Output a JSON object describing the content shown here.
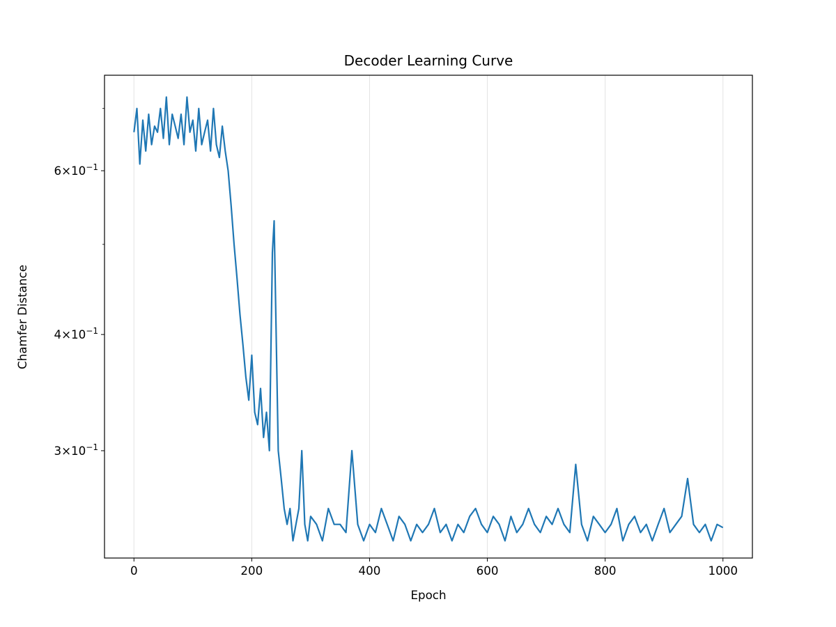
{
  "chart_data": {
    "type": "line",
    "title": "Decoder Learning Curve",
    "xlabel": "Epoch",
    "ylabel": "Chamfer Distance",
    "yscale": "log",
    "xlim": [
      -50,
      1050
    ],
    "ylim": [
      0.23,
      0.76
    ],
    "grid": "vertical (x-axis major ticks)",
    "x_ticks": [
      0,
      200,
      400,
      600,
      800,
      1000
    ],
    "x_tick_labels": [
      "0",
      "200",
      "400",
      "600",
      "800",
      "1000"
    ],
    "y_major_ticks": [
      0.3,
      0.4,
      0.6
    ],
    "y_tick_labels": [
      {
        "mantissa": "3",
        "base": "10",
        "exp": "−1"
      },
      {
        "mantissa": "4",
        "base": "10",
        "exp": "−1"
      },
      {
        "mantissa": "6",
        "base": "10",
        "exp": "−1"
      }
    ],
    "y_minor_ticks": [
      0.5,
      0.7
    ],
    "series": [
      {
        "color": "#1f77b4",
        "x": [
          0,
          5,
          10,
          15,
          20,
          25,
          30,
          35,
          40,
          45,
          50,
          55,
          60,
          65,
          70,
          75,
          80,
          85,
          90,
          95,
          100,
          105,
          110,
          115,
          120,
          125,
          130,
          135,
          140,
          145,
          150,
          155,
          160,
          165,
          170,
          175,
          180,
          185,
          190,
          195,
          200,
          205,
          210,
          215,
          220,
          225,
          230,
          235,
          238,
          240,
          245,
          250,
          255,
          260,
          265,
          270,
          275,
          280,
          285,
          290,
          295,
          300,
          310,
          320,
          330,
          340,
          350,
          360,
          370,
          380,
          390,
          400,
          410,
          420,
          430,
          440,
          450,
          460,
          470,
          480,
          490,
          500,
          510,
          520,
          530,
          540,
          550,
          560,
          570,
          580,
          590,
          600,
          610,
          620,
          630,
          640,
          650,
          660,
          670,
          680,
          690,
          700,
          710,
          720,
          730,
          740,
          750,
          760,
          770,
          780,
          790,
          800,
          810,
          820,
          830,
          840,
          850,
          860,
          870,
          880,
          890,
          900,
          910,
          920,
          930,
          940,
          950,
          960,
          970,
          980,
          990,
          1000
        ],
        "y": [
          0.66,
          0.7,
          0.61,
          0.68,
          0.63,
          0.69,
          0.64,
          0.67,
          0.66,
          0.7,
          0.65,
          0.72,
          0.64,
          0.69,
          0.67,
          0.65,
          0.69,
          0.64,
          0.72,
          0.66,
          0.68,
          0.63,
          0.7,
          0.64,
          0.66,
          0.68,
          0.63,
          0.7,
          0.64,
          0.62,
          0.67,
          0.63,
          0.6,
          0.55,
          0.5,
          0.46,
          0.42,
          0.39,
          0.36,
          0.34,
          0.38,
          0.33,
          0.32,
          0.35,
          0.31,
          0.33,
          0.3,
          0.49,
          0.53,
          0.45,
          0.3,
          0.28,
          0.26,
          0.25,
          0.26,
          0.24,
          0.25,
          0.26,
          0.3,
          0.25,
          0.24,
          0.255,
          0.25,
          0.24,
          0.26,
          0.25,
          0.25,
          0.245,
          0.3,
          0.25,
          0.24,
          0.25,
          0.245,
          0.26,
          0.25,
          0.24,
          0.255,
          0.25,
          0.24,
          0.25,
          0.245,
          0.25,
          0.26,
          0.245,
          0.25,
          0.24,
          0.25,
          0.245,
          0.255,
          0.26,
          0.25,
          0.245,
          0.255,
          0.25,
          0.24,
          0.255,
          0.245,
          0.25,
          0.26,
          0.25,
          0.245,
          0.255,
          0.25,
          0.26,
          0.25,
          0.245,
          0.29,
          0.25,
          0.24,
          0.255,
          0.25,
          0.245,
          0.25,
          0.26,
          0.24,
          0.25,
          0.255,
          0.245,
          0.25,
          0.24,
          0.25,
          0.26,
          0.245,
          0.25,
          0.255,
          0.28,
          0.25,
          0.245,
          0.25,
          0.24,
          0.25,
          0.248
        ]
      }
    ]
  }
}
